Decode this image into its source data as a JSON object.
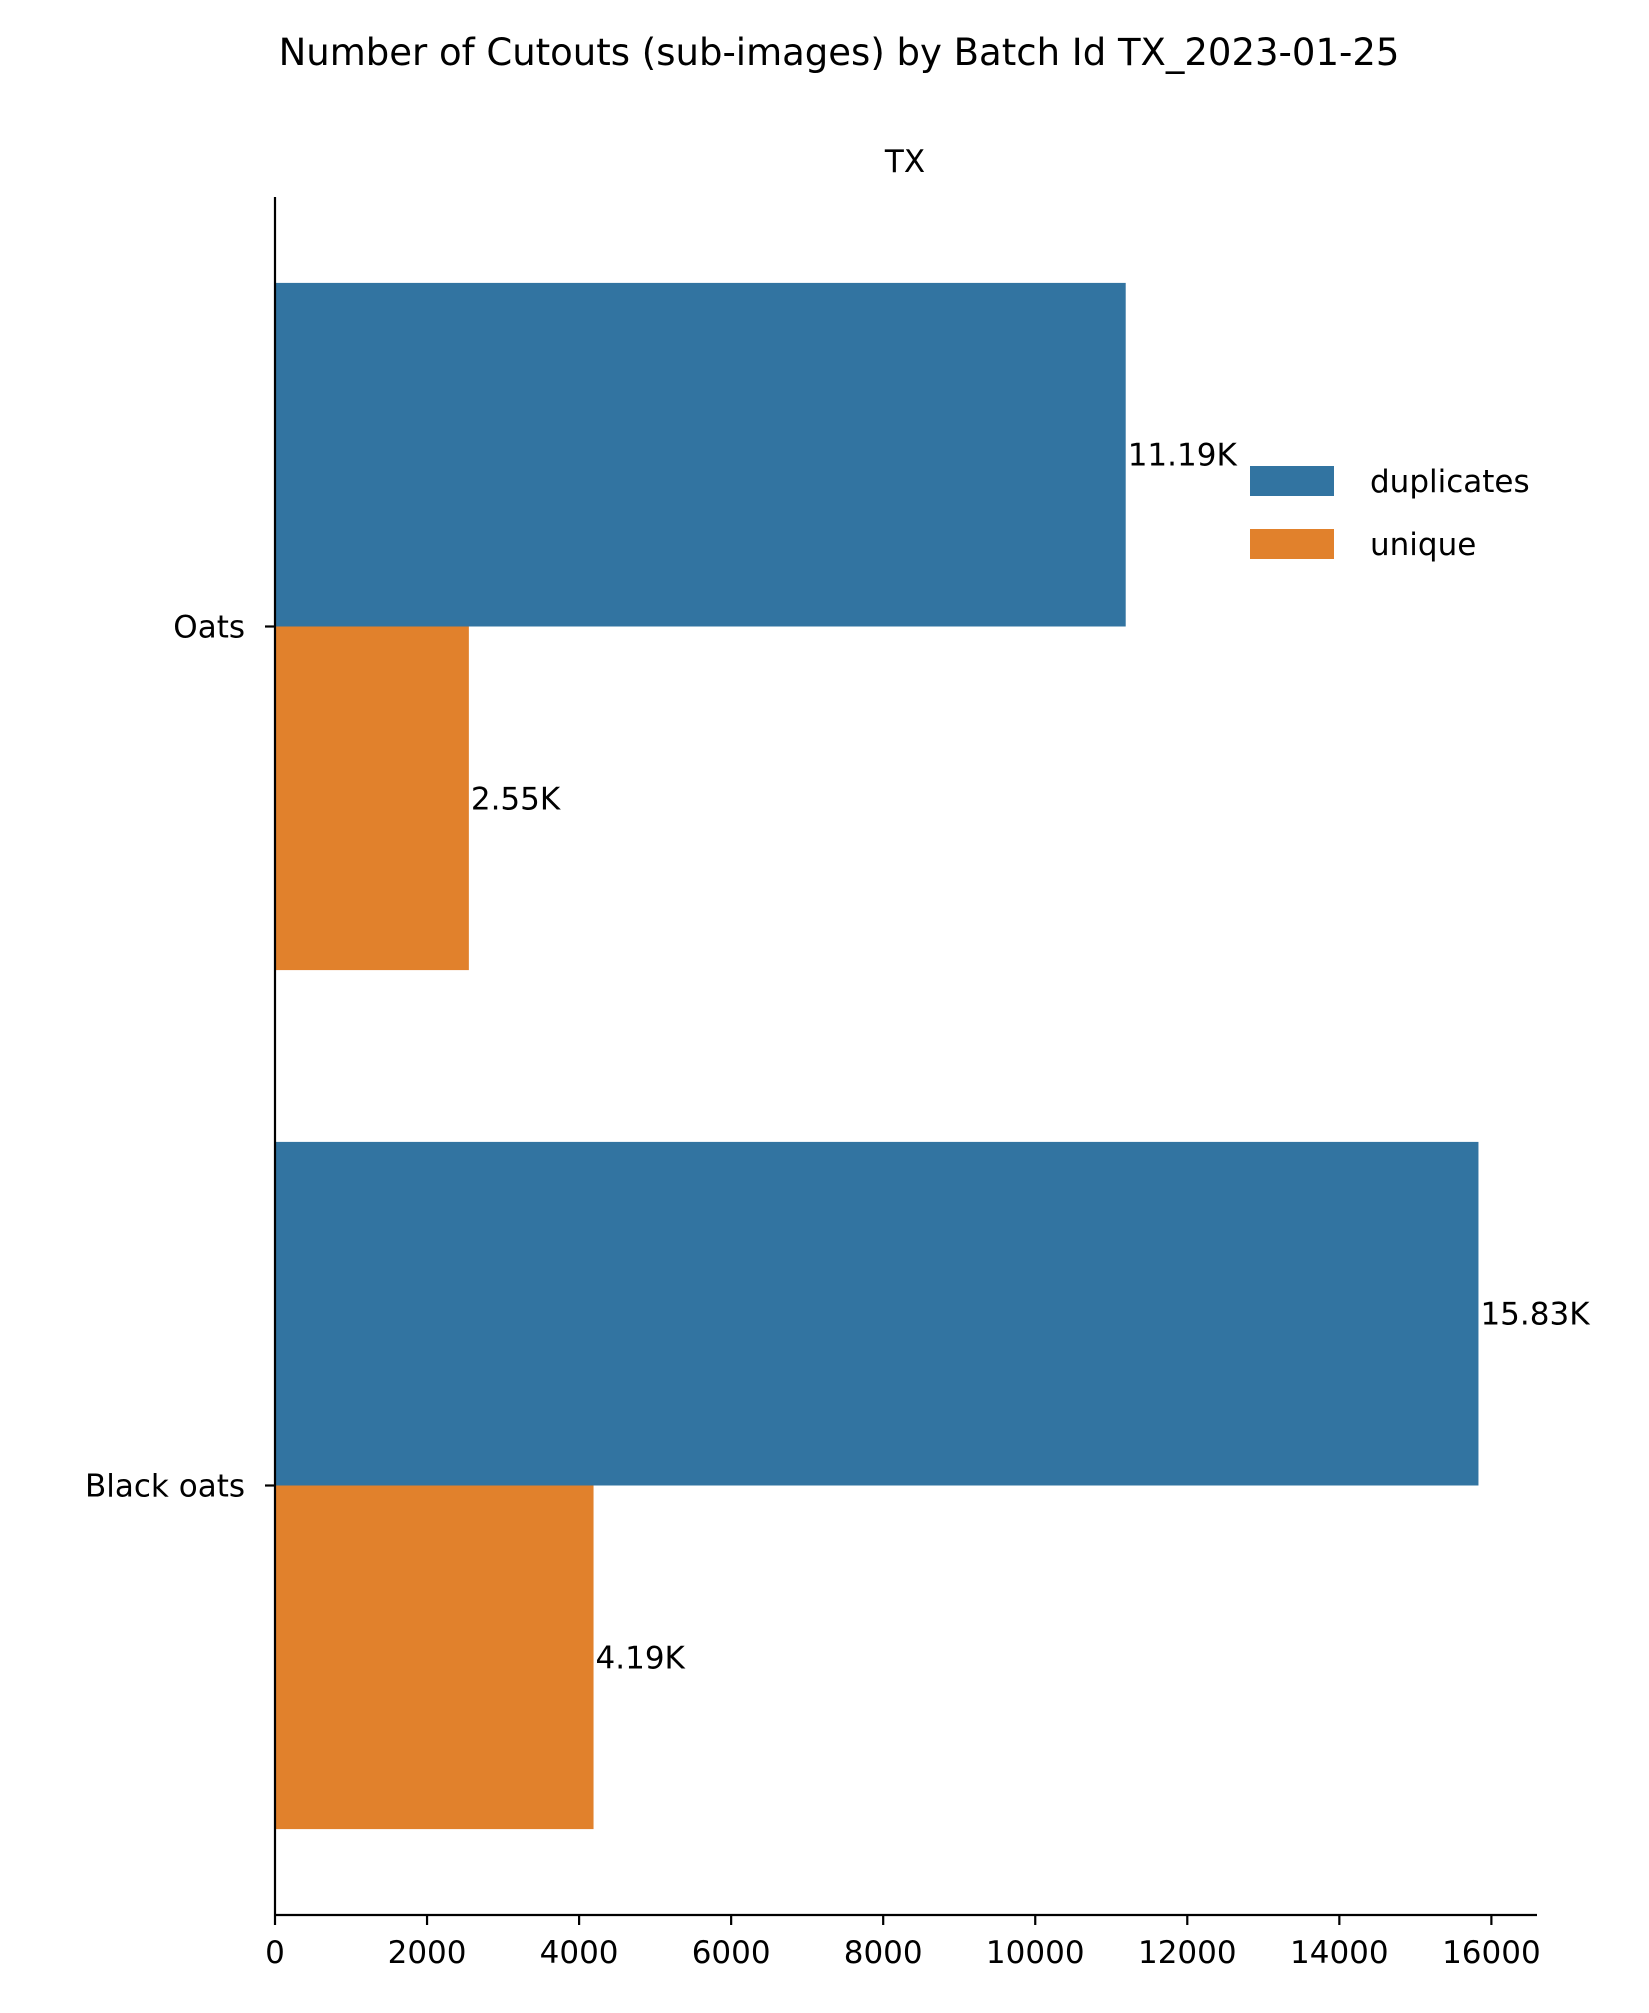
{
  "chart_data": {
    "type": "bar",
    "orientation": "horizontal",
    "title": "Number of Cutouts (sub-images) by Batch Id TX_2023-01-25",
    "subtitle": "TX",
    "xlabel": "",
    "ylabel": "",
    "categories": [
      "Oats",
      "Black oats"
    ],
    "series": [
      {
        "name": "duplicates",
        "color": "#3274a1",
        "values": [
          11190,
          15830
        ],
        "labels": [
          "11.19K",
          "15.83K"
        ]
      },
      {
        "name": "unique",
        "color": "#e1812c",
        "values": [
          2550,
          4190
        ],
        "labels": [
          "2.55K",
          "4.19K"
        ]
      }
    ],
    "xlim": [
      0,
      16600
    ],
    "xticks": [
      0,
      2000,
      4000,
      6000,
      8000,
      10000,
      12000,
      14000,
      16000
    ],
    "grid": false,
    "legend": {
      "position": "top-right",
      "entries": [
        "duplicates",
        "unique"
      ]
    }
  }
}
